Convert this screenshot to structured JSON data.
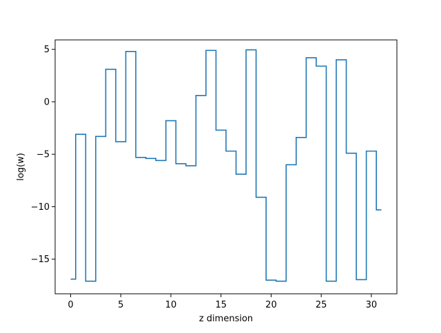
{
  "chart_data": {
    "type": "line",
    "drawstyle": "steps-mid",
    "title": "",
    "xlabel": "z dimension",
    "ylabel": "log(w)",
    "xlim": [
      -1.55,
      32.55
    ],
    "ylim": [
      -18.3,
      5.9
    ],
    "xticks": [
      0,
      5,
      10,
      15,
      20,
      25,
      30
    ],
    "yticks": [
      5,
      0,
      -5,
      -10,
      -15
    ],
    "ytick_labels": [
      "5",
      "0",
      "−5",
      "−10",
      "−15"
    ],
    "grid": false,
    "legend": "none",
    "line_color": "#1f77b4",
    "series": [
      {
        "x": [
          0,
          1,
          2,
          3,
          4,
          5,
          6,
          7,
          8,
          9,
          10,
          11,
          12,
          13,
          14,
          15,
          16,
          17,
          18,
          19,
          20,
          21,
          22,
          23,
          24,
          25,
          26,
          27,
          28,
          29,
          30,
          31
        ],
        "values": [
          -16.9,
          -3.1,
          -17.1,
          -3.3,
          3.1,
          -3.8,
          4.8,
          -5.3,
          -5.4,
          -5.6,
          -1.8,
          -5.9,
          -6.1,
          0.6,
          4.9,
          -2.7,
          -4.7,
          -6.9,
          4.95,
          -9.1,
          -17.0,
          -17.1,
          -6.0,
          -3.4,
          4.2,
          3.4,
          -17.1,
          4.0,
          -4.9,
          -16.95,
          -4.7,
          -10.3
        ]
      }
    ]
  }
}
